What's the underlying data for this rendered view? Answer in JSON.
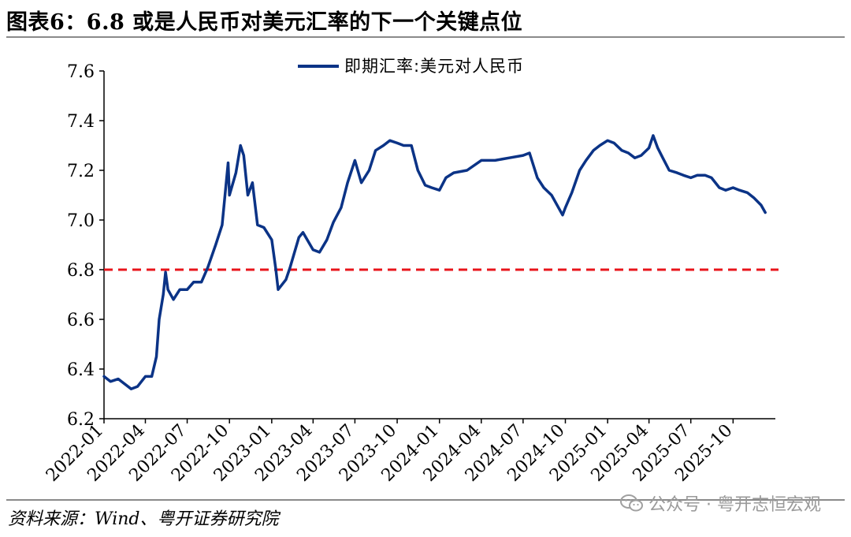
{
  "header": {
    "title": "图表6：6.8 或是人民币对美元汇率的下一个关键点位"
  },
  "footer": {
    "source": "资料来源：Wind、粤开证券研究院",
    "watermark": "公众号 · 粤开志恒宏观",
    "watermark_icon": "wechat-icon"
  },
  "colors": {
    "series": "#0b3386",
    "reference": "#e8141b",
    "axis": "#000000"
  },
  "chart_data": {
    "type": "line",
    "title": "",
    "xlabel": "",
    "ylabel": "",
    "ylim": [
      6.2,
      7.6
    ],
    "yticks": [
      "6.2",
      "6.4",
      "6.6",
      "6.8",
      "7.0",
      "7.2",
      "7.4",
      "7.6"
    ],
    "xlim": [
      "2022-01",
      "2025-12"
    ],
    "xticks": [
      "2022-01",
      "2022-04",
      "2022-07",
      "2022-10",
      "2023-01",
      "2023-04",
      "2023-07",
      "2023-10",
      "2024-01",
      "2024-04",
      "2024-07",
      "2024-10",
      "2025-01",
      "2025-04",
      "2025-07",
      "2025-10"
    ],
    "legend_position": "top-center",
    "grid": false,
    "series": [
      {
        "name": "即期汇率:美元对人民币",
        "points": [
          [
            "2022-01",
            6.37
          ],
          [
            "2022-01-15",
            6.35
          ],
          [
            "2022-02",
            6.36
          ],
          [
            "2022-02-15",
            6.34
          ],
          [
            "2022-03",
            6.32
          ],
          [
            "2022-03-15",
            6.33
          ],
          [
            "2022-04",
            6.37
          ],
          [
            "2022-04-15",
            6.37
          ],
          [
            "2022-04-25",
            6.45
          ],
          [
            "2022-05",
            6.6
          ],
          [
            "2022-05-10",
            6.7
          ],
          [
            "2022-05-15",
            6.79
          ],
          [
            "2022-05-20",
            6.72
          ],
          [
            "2022-06",
            6.68
          ],
          [
            "2022-06-15",
            6.72
          ],
          [
            "2022-07",
            6.72
          ],
          [
            "2022-07-15",
            6.75
          ],
          [
            "2022-08",
            6.75
          ],
          [
            "2022-08-15",
            6.81
          ],
          [
            "2022-09",
            6.9
          ],
          [
            "2022-09-15",
            6.98
          ],
          [
            "2022-09-28",
            7.23
          ],
          [
            "2022-10",
            7.1
          ],
          [
            "2022-10-15",
            7.19
          ],
          [
            "2022-10-25",
            7.3
          ],
          [
            "2022-11",
            7.26
          ],
          [
            "2022-11-10",
            7.1
          ],
          [
            "2022-11-20",
            7.15
          ],
          [
            "2022-12",
            6.98
          ],
          [
            "2022-12-15",
            6.97
          ],
          [
            "2023-01",
            6.92
          ],
          [
            "2023-01-10",
            6.8
          ],
          [
            "2023-01-15",
            6.72
          ],
          [
            "2023-02",
            6.76
          ],
          [
            "2023-02-10",
            6.81
          ],
          [
            "2023-03",
            6.93
          ],
          [
            "2023-03-10",
            6.95
          ],
          [
            "2023-04",
            6.88
          ],
          [
            "2023-04-15",
            6.87
          ],
          [
            "2023-05",
            6.92
          ],
          [
            "2023-05-15",
            6.99
          ],
          [
            "2023-06",
            7.05
          ],
          [
            "2023-06-15",
            7.15
          ],
          [
            "2023-07",
            7.24
          ],
          [
            "2023-07-15",
            7.15
          ],
          [
            "2023-08",
            7.2
          ],
          [
            "2023-08-15",
            7.28
          ],
          [
            "2023-09",
            7.3
          ],
          [
            "2023-09-15",
            7.32
          ],
          [
            "2023-10",
            7.31
          ],
          [
            "2023-10-15",
            7.3
          ],
          [
            "2023-11",
            7.3
          ],
          [
            "2023-11-15",
            7.2
          ],
          [
            "2023-12",
            7.14
          ],
          [
            "2023-12-15",
            7.13
          ],
          [
            "2024-01",
            7.12
          ],
          [
            "2024-01-15",
            7.17
          ],
          [
            "2024-02",
            7.19
          ],
          [
            "2024-03",
            7.2
          ],
          [
            "2024-04",
            7.24
          ],
          [
            "2024-05",
            7.24
          ],
          [
            "2024-06",
            7.25
          ],
          [
            "2024-07",
            7.26
          ],
          [
            "2024-07-15",
            7.27
          ],
          [
            "2024-08",
            7.17
          ],
          [
            "2024-08-15",
            7.13
          ],
          [
            "2024-09",
            7.1
          ],
          [
            "2024-09-25",
            7.02
          ],
          [
            "2024-10",
            7.05
          ],
          [
            "2024-10-15",
            7.11
          ],
          [
            "2024-11",
            7.2
          ],
          [
            "2024-11-15",
            7.24
          ],
          [
            "2024-12",
            7.28
          ],
          [
            "2024-12-15",
            7.3
          ],
          [
            "2025-01",
            7.32
          ],
          [
            "2025-01-15",
            7.31
          ],
          [
            "2025-02",
            7.28
          ],
          [
            "2025-02-15",
            7.27
          ],
          [
            "2025-03",
            7.25
          ],
          [
            "2025-03-15",
            7.26
          ],
          [
            "2025-04",
            7.29
          ],
          [
            "2025-04-10",
            7.34
          ],
          [
            "2025-04-20",
            7.29
          ],
          [
            "2025-05",
            7.25
          ],
          [
            "2025-05-15",
            7.2
          ],
          [
            "2025-06",
            7.19
          ],
          [
            "2025-06-15",
            7.18
          ],
          [
            "2025-07",
            7.17
          ],
          [
            "2025-07-15",
            7.18
          ],
          [
            "2025-08",
            7.18
          ],
          [
            "2025-08-15",
            7.17
          ],
          [
            "2025-09",
            7.13
          ],
          [
            "2025-09-15",
            7.12
          ],
          [
            "2025-10",
            7.13
          ],
          [
            "2025-10-15",
            7.12
          ],
          [
            "2025-11",
            7.11
          ],
          [
            "2025-11-15",
            7.09
          ],
          [
            "2025-12",
            7.06
          ],
          [
            "2025-12-10",
            7.03
          ]
        ]
      }
    ],
    "reference_lines": [
      {
        "y": 6.8,
        "style": "dashed"
      }
    ]
  }
}
